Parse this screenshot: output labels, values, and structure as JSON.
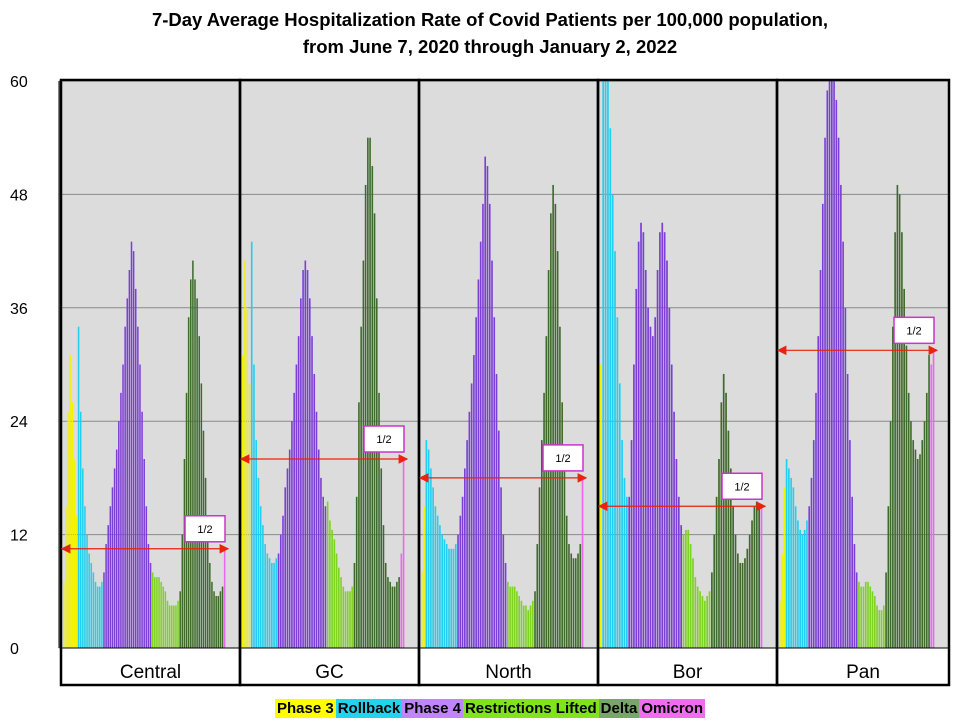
{
  "chart_data": {
    "type": "bar",
    "title_line1": "7-Day Average Hospitalization Rate of Covid Patients per 100,000 population,",
    "title_line2": "from June 7, 2020 through January 2, 2022",
    "ylim": [
      0,
      60
    ],
    "yticks": [
      "0",
      "12",
      "24",
      "36",
      "48",
      "60"
    ],
    "grid": true,
    "half_label": "1/2",
    "phase_colors": {
      "phase3": "#f2f200",
      "rollback": "#22cff0",
      "phase4": "#7b3fd6",
      "lifted": "#7ed321",
      "delta": "#3e6b2c",
      "omicron": "#ee66ee"
    },
    "legend": [
      {
        "key": "phase3",
        "label": "Phase 3"
      },
      {
        "key": "rollback",
        "label": "Rollback"
      },
      {
        "key": "phase4",
        "label": "Phase 4"
      },
      {
        "key": "lifted",
        "label": "Restrictions Lifted"
      },
      {
        "key": "delta",
        "label": "Delta"
      },
      {
        "key": "omicron",
        "label": "Omicron"
      }
    ],
    "regions": [
      {
        "name": "Central",
        "half_value": 10.5,
        "phases": [
          {
            "key": "phase3",
            "values": [
              7,
              15,
              25,
              31,
              26,
              20,
              14
            ]
          },
          {
            "key": "rollback",
            "values": [
              34,
              25,
              19,
              15,
              12,
              10,
              9,
              8,
              7,
              6.5,
              6.5,
              7
            ]
          },
          {
            "key": "phase4",
            "values": [
              8,
              11,
              13,
              15,
              17,
              19,
              21,
              24,
              27,
              30,
              34,
              37,
              40,
              43,
              42,
              38,
              34,
              30,
              25,
              20,
              15,
              11,
              9
            ]
          },
          {
            "key": "lifted",
            "values": [
              8,
              7.5,
              7.5,
              7.5,
              7,
              6.5,
              6,
              5,
              4.5,
              4.5,
              4.5,
              4.5,
              5
            ]
          },
          {
            "key": "delta",
            "values": [
              6,
              12,
              20,
              27,
              35,
              39,
              41,
              39,
              37,
              33,
              28,
              23,
              18,
              13,
              9,
              7,
              6,
              5.5,
              5.5,
              6,
              6.5
            ]
          },
          {
            "key": "omicron",
            "values": [
              10.5
            ]
          }
        ]
      },
      {
        "name": "GC",
        "half_value": 20,
        "phases": [
          {
            "key": "phase3",
            "values": [
              31,
              41,
              36,
              28
            ]
          },
          {
            "key": "rollback",
            "values": [
              43,
              30,
              22,
              18,
              15,
              13,
              11,
              10,
              9.5,
              9,
              9,
              9.5
            ]
          },
          {
            "key": "phase4",
            "values": [
              10,
              12,
              14,
              17,
              19,
              21,
              24,
              27,
              30,
              33,
              37,
              40,
              41,
              40,
              37,
              33,
              29,
              25,
              21,
              18,
              16,
              15
            ]
          },
          {
            "key": "lifted",
            "values": [
              15.5,
              13.5,
              12.5,
              11.5,
              10,
              8.5,
              7.5,
              6.5,
              6,
              6,
              6,
              6.5
            ]
          },
          {
            "key": "delta",
            "values": [
              9,
              16,
              26,
              34,
              41,
              49,
              54,
              54,
              51,
              46,
              37,
              27,
              19,
              13,
              9,
              7.5,
              7,
              6.5,
              6.5,
              7,
              7.5
            ]
          },
          {
            "key": "omicron",
            "values": [
              10,
              20
            ]
          }
        ]
      },
      {
        "name": "North",
        "half_value": 18,
        "phases": [
          {
            "key": "phase3",
            "values": [
              8,
              15
            ]
          },
          {
            "key": "rollback",
            "values": [
              22,
              21,
              19,
              17,
              15,
              14,
              13,
              12,
              11.5,
              11,
              10.5,
              10.5,
              10.5,
              11
            ]
          },
          {
            "key": "phase4",
            "values": [
              12,
              14,
              16,
              19,
              22,
              25,
              28,
              31,
              35,
              39,
              43,
              47,
              52,
              51,
              47,
              41,
              35,
              29,
              23,
              17,
              12,
              9
            ]
          },
          {
            "key": "lifted",
            "values": [
              7,
              6.5,
              6.5,
              6.5,
              6,
              5.5,
              5,
              4.5,
              4.5,
              4,
              4.5,
              5
            ]
          },
          {
            "key": "delta",
            "values": [
              6,
              11,
              17,
              22,
              27,
              33,
              40,
              46,
              49,
              47,
              42,
              34,
              26,
              19,
              14,
              11,
              10,
              9.5,
              9.5,
              10,
              11
            ]
          },
          {
            "key": "omicron",
            "values": [
              18
            ]
          }
        ]
      },
      {
        "name": "Bor",
        "half_value": 15,
        "phases": [
          {
            "key": "phase3",
            "values": [
              30
            ]
          },
          {
            "key": "rollback",
            "values": [
              60,
              60,
              60,
              55,
              48,
              42,
              35,
              28,
              22,
              18,
              16
            ]
          },
          {
            "key": "phase4",
            "values": [
              16,
              22,
              30,
              38,
              43,
              45,
              44,
              40,
              36,
              34,
              33,
              35,
              40,
              44,
              45,
              44,
              41,
              36,
              30,
              25,
              20,
              16,
              13
            ]
          },
          {
            "key": "lifted",
            "values": [
              12,
              12.5,
              12.5,
              11,
              9.5,
              7.5,
              6.5,
              6,
              5.5,
              5,
              5.5,
              6
            ]
          },
          {
            "key": "delta",
            "values": [
              8,
              12,
              16,
              20,
              26,
              29,
              27,
              23,
              19,
              15,
              12,
              10,
              9,
              9,
              9.5,
              10.5,
              12,
              13.5,
              15,
              15.5,
              15
            ]
          },
          {
            "key": "omicron",
            "values": [
              15
            ]
          }
        ]
      },
      {
        "name": "Pan",
        "half_value": 31.5,
        "phases": [
          {
            "key": "phase3",
            "values": [
              5,
              10,
              17
            ]
          },
          {
            "key": "rollback",
            "values": [
              20,
              19,
              18,
              17,
              15,
              13.5,
              12.5,
              12,
              12.5,
              13.5
            ]
          },
          {
            "key": "phase4",
            "values": [
              15,
              18,
              22,
              27,
              33,
              40,
              47,
              54,
              59,
              60,
              60,
              60,
              58,
              54,
              49,
              43,
              36,
              29,
              22,
              16,
              11,
              8
            ]
          },
          {
            "key": "lifted",
            "values": [
              7,
              6.5,
              6.5,
              7,
              7,
              6.5,
              6,
              5.5,
              4.5,
              4,
              4,
              4.5
            ]
          },
          {
            "key": "delta",
            "values": [
              8,
              15,
              24,
              34,
              44,
              49,
              48,
              44,
              38,
              32,
              27,
              24,
              22,
              21,
              20,
              20.5,
              22,
              24,
              27,
              31
            ]
          },
          {
            "key": "omicron",
            "values": [
              30,
              31.5
            ]
          }
        ]
      }
    ]
  }
}
